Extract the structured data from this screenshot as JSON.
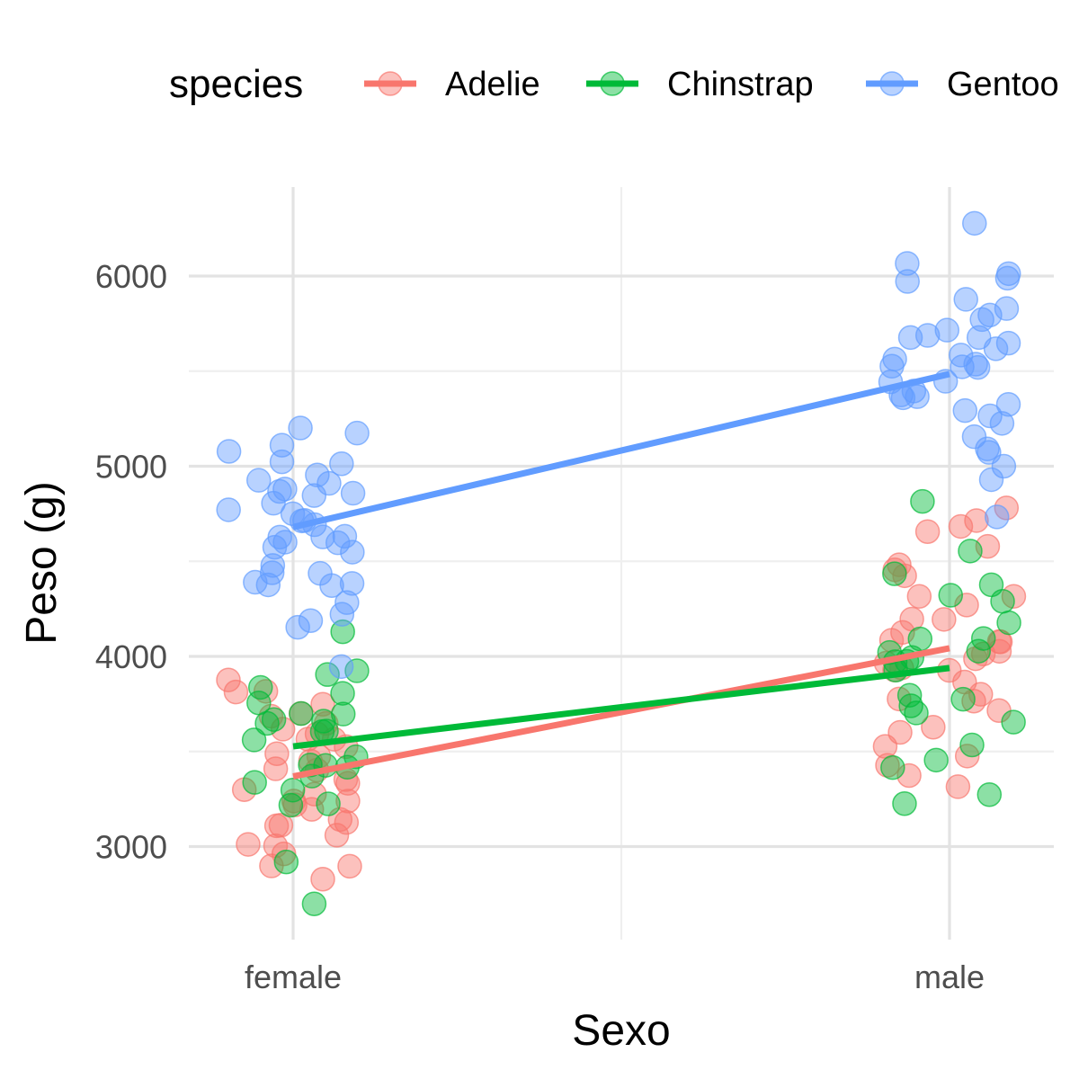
{
  "chart_data": {
    "type": "scatter",
    "xlabel": "Sexo",
    "ylabel": "Peso (g)",
    "categories": [
      "female",
      "male"
    ],
    "y_ticks": [
      3000,
      4000,
      5000,
      6000
    ],
    "ylim": [
      2500,
      6450
    ],
    "grid": true,
    "legend": {
      "title": "species",
      "position": "top",
      "entries": [
        "Adelie",
        "Chinstrap",
        "Gentoo"
      ]
    },
    "series": [
      {
        "name": "Adelie",
        "color": "#F8766D",
        "trend": {
          "female": 3369,
          "male": 4043
        },
        "points": [
          {
            "x": "female",
            "y": 3900
          },
          {
            "x": "female",
            "y": 3800
          },
          {
            "x": "female",
            "y": 3750
          },
          {
            "x": "female",
            "y": 3700
          },
          {
            "x": "female",
            "y": 3650
          },
          {
            "x": "female",
            "y": 3600
          },
          {
            "x": "female",
            "y": 3550
          },
          {
            "x": "female",
            "y": 3500
          },
          {
            "x": "female",
            "y": 3450
          },
          {
            "x": "female",
            "y": 3400
          },
          {
            "x": "female",
            "y": 3350
          },
          {
            "x": "female",
            "y": 3300
          },
          {
            "x": "female",
            "y": 3250
          },
          {
            "x": "female",
            "y": 3200
          },
          {
            "x": "female",
            "y": 3150
          },
          {
            "x": "female",
            "y": 3100
          },
          {
            "x": "female",
            "y": 3050
          },
          {
            "x": "female",
            "y": 3000
          },
          {
            "x": "female",
            "y": 2950
          },
          {
            "x": "female",
            "y": 2900
          },
          {
            "x": "female",
            "y": 2850
          },
          {
            "x": "female",
            "y": 3800
          },
          {
            "x": "female",
            "y": 3700
          },
          {
            "x": "female",
            "y": 3600
          },
          {
            "x": "female",
            "y": 3500
          },
          {
            "x": "female",
            "y": 3400
          },
          {
            "x": "female",
            "y": 3300
          },
          {
            "x": "female",
            "y": 3200
          },
          {
            "x": "female",
            "y": 3100
          },
          {
            "x": "female",
            "y": 3000
          },
          {
            "x": "female",
            "y": 2900
          },
          {
            "x": "female",
            "y": 3550
          },
          {
            "x": "female",
            "y": 3350
          },
          {
            "x": "female",
            "y": 3150
          },
          {
            "x": "female",
            "y": 3450
          },
          {
            "x": "female",
            "y": 3250
          },
          {
            "x": "male",
            "y": 4775
          },
          {
            "x": "male",
            "y": 4700
          },
          {
            "x": "male",
            "y": 4675
          },
          {
            "x": "male",
            "y": 4650
          },
          {
            "x": "male",
            "y": 4600
          },
          {
            "x": "male",
            "y": 4500
          },
          {
            "x": "male",
            "y": 4450
          },
          {
            "x": "male",
            "y": 4400
          },
          {
            "x": "male",
            "y": 4300
          },
          {
            "x": "male",
            "y": 4250
          },
          {
            "x": "male",
            "y": 4200
          },
          {
            "x": "male",
            "y": 4150
          },
          {
            "x": "male",
            "y": 4100
          },
          {
            "x": "male",
            "y": 4050
          },
          {
            "x": "male",
            "y": 4000
          },
          {
            "x": "male",
            "y": 3950
          },
          {
            "x": "male",
            "y": 3900
          },
          {
            "x": "male",
            "y": 3850
          },
          {
            "x": "male",
            "y": 3800
          },
          {
            "x": "male",
            "y": 3750
          },
          {
            "x": "male",
            "y": 3700
          },
          {
            "x": "male",
            "y": 3650
          },
          {
            "x": "male",
            "y": 3600
          },
          {
            "x": "male",
            "y": 3550
          },
          {
            "x": "male",
            "y": 3500
          },
          {
            "x": "male",
            "y": 3450
          },
          {
            "x": "male",
            "y": 3400
          },
          {
            "x": "male",
            "y": 3325
          },
          {
            "x": "male",
            "y": 4300
          },
          {
            "x": "male",
            "y": 4200
          },
          {
            "x": "male",
            "y": 4100
          },
          {
            "x": "male",
            "y": 4000
          },
          {
            "x": "male",
            "y": 3900
          },
          {
            "x": "male",
            "y": 3800
          },
          {
            "x": "male",
            "y": 3950
          },
          {
            "x": "male",
            "y": 4050
          }
        ]
      },
      {
        "name": "Chinstrap",
        "color": "#00BA38",
        "trend": {
          "female": 3527,
          "male": 3939
        },
        "points": [
          {
            "x": "female",
            "y": 4150
          },
          {
            "x": "female",
            "y": 3950
          },
          {
            "x": "female",
            "y": 3900
          },
          {
            "x": "female",
            "y": 3850
          },
          {
            "x": "female",
            "y": 3800
          },
          {
            "x": "female",
            "y": 3750
          },
          {
            "x": "female",
            "y": 3700
          },
          {
            "x": "female",
            "y": 3675
          },
          {
            "x": "female",
            "y": 3650
          },
          {
            "x": "female",
            "y": 3600
          },
          {
            "x": "female",
            "y": 3550
          },
          {
            "x": "female",
            "y": 3500
          },
          {
            "x": "female",
            "y": 3450
          },
          {
            "x": "female",
            "y": 3400
          },
          {
            "x": "female",
            "y": 3350
          },
          {
            "x": "female",
            "y": 3300
          },
          {
            "x": "female",
            "y": 3250
          },
          {
            "x": "female",
            "y": 3200
          },
          {
            "x": "female",
            "y": 2900
          },
          {
            "x": "female",
            "y": 2700
          },
          {
            "x": "female",
            "y": 3700
          },
          {
            "x": "female",
            "y": 3600
          },
          {
            "x": "female",
            "y": 3400
          },
          {
            "x": "female",
            "y": 3650
          },
          {
            "x": "female",
            "y": 3350
          },
          {
            "x": "male",
            "y": 4800
          },
          {
            "x": "male",
            "y": 4550
          },
          {
            "x": "male",
            "y": 4450
          },
          {
            "x": "male",
            "y": 4400
          },
          {
            "x": "male",
            "y": 4300
          },
          {
            "x": "male",
            "y": 4150
          },
          {
            "x": "male",
            "y": 4100
          },
          {
            "x": "male",
            "y": 4050
          },
          {
            "x": "male",
            "y": 4000
          },
          {
            "x": "male",
            "y": 3950
          },
          {
            "x": "male",
            "y": 3900
          },
          {
            "x": "male",
            "y": 3800
          },
          {
            "x": "male",
            "y": 3775
          },
          {
            "x": "male",
            "y": 3750
          },
          {
            "x": "male",
            "y": 3700
          },
          {
            "x": "male",
            "y": 3650
          },
          {
            "x": "male",
            "y": 3550
          },
          {
            "x": "male",
            "y": 3450
          },
          {
            "x": "male",
            "y": 3400
          },
          {
            "x": "male",
            "y": 3300
          },
          {
            "x": "male",
            "y": 3250
          },
          {
            "x": "male",
            "y": 4300
          },
          {
            "x": "male",
            "y": 4000
          },
          {
            "x": "male",
            "y": 3950
          },
          {
            "x": "male",
            "y": 4100
          }
        ]
      },
      {
        "name": "Gentoo",
        "color": "#619CFF",
        "trend": {
          "female": 4680,
          "male": 5485
        },
        "points": [
          {
            "x": "female",
            "y": 5200
          },
          {
            "x": "female",
            "y": 5150
          },
          {
            "x": "female",
            "y": 5100
          },
          {
            "x": "female",
            "y": 5050
          },
          {
            "x": "female",
            "y": 5000
          },
          {
            "x": "female",
            "y": 4950
          },
          {
            "x": "female",
            "y": 4925
          },
          {
            "x": "female",
            "y": 4900
          },
          {
            "x": "female",
            "y": 4875
          },
          {
            "x": "female",
            "y": 4850
          },
          {
            "x": "female",
            "y": 4800
          },
          {
            "x": "female",
            "y": 4750
          },
          {
            "x": "female",
            "y": 4725
          },
          {
            "x": "female",
            "y": 4700
          },
          {
            "x": "female",
            "y": 4650
          },
          {
            "x": "female",
            "y": 4625
          },
          {
            "x": "female",
            "y": 4600
          },
          {
            "x": "female",
            "y": 4575
          },
          {
            "x": "female",
            "y": 4550
          },
          {
            "x": "female",
            "y": 4500
          },
          {
            "x": "female",
            "y": 4450
          },
          {
            "x": "female",
            "y": 4400
          },
          {
            "x": "female",
            "y": 4375
          },
          {
            "x": "female",
            "y": 4350
          },
          {
            "x": "female",
            "y": 4300
          },
          {
            "x": "female",
            "y": 4200
          },
          {
            "x": "female",
            "y": 4150
          },
          {
            "x": "female",
            "y": 3950
          },
          {
            "x": "female",
            "y": 5000
          },
          {
            "x": "female",
            "y": 4950
          },
          {
            "x": "female",
            "y": 4850
          },
          {
            "x": "female",
            "y": 4700
          },
          {
            "x": "female",
            "y": 4650
          },
          {
            "x": "female",
            "y": 4450
          },
          {
            "x": "female",
            "y": 4200
          },
          {
            "x": "female",
            "y": 4400
          },
          {
            "x": "female",
            "y": 4750
          },
          {
            "x": "female",
            "y": 4600
          },
          {
            "x": "male",
            "y": 6300
          },
          {
            "x": "male",
            "y": 6050
          },
          {
            "x": "male",
            "y": 6000
          },
          {
            "x": "male",
            "y": 5950
          },
          {
            "x": "male",
            "y": 5850
          },
          {
            "x": "male",
            "y": 5800
          },
          {
            "x": "male",
            "y": 5750
          },
          {
            "x": "male",
            "y": 5700
          },
          {
            "x": "male",
            "y": 5650
          },
          {
            "x": "male",
            "y": 5600
          },
          {
            "x": "male",
            "y": 5550
          },
          {
            "x": "male",
            "y": 5500
          },
          {
            "x": "male",
            "y": 5450
          },
          {
            "x": "male",
            "y": 5400
          },
          {
            "x": "male",
            "y": 5350
          },
          {
            "x": "male",
            "y": 5300
          },
          {
            "x": "male",
            "y": 5250
          },
          {
            "x": "male",
            "y": 5200
          },
          {
            "x": "male",
            "y": 5150
          },
          {
            "x": "male",
            "y": 5100
          },
          {
            "x": "male",
            "y": 5050
          },
          {
            "x": "male",
            "y": 5000
          },
          {
            "x": "male",
            "y": 4925
          },
          {
            "x": "male",
            "y": 4750
          },
          {
            "x": "male",
            "y": 5700
          },
          {
            "x": "male",
            "y": 5600
          },
          {
            "x": "male",
            "y": 5500
          },
          {
            "x": "male",
            "y": 5400
          },
          {
            "x": "male",
            "y": 5300
          },
          {
            "x": "male",
            "y": 5550
          },
          {
            "x": "male",
            "y": 5850
          },
          {
            "x": "male",
            "y": 6000
          },
          {
            "x": "male",
            "y": 5650
          },
          {
            "x": "male",
            "y": 5450
          },
          {
            "x": "male",
            "y": 5350
          },
          {
            "x": "male",
            "y": 5700
          },
          {
            "x": "male",
            "y": 5500
          }
        ]
      }
    ]
  }
}
